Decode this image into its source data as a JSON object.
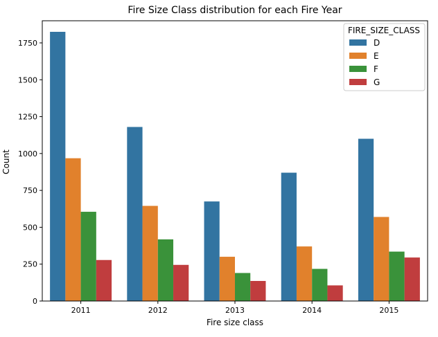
{
  "chart_data": {
    "type": "bar",
    "title": "Fire Size Class distribution for each Fire Year",
    "xlabel": "Fire size class",
    "ylabel": "Count",
    "categories": [
      "2011",
      "2012",
      "2013",
      "2014",
      "2015"
    ],
    "ylim": [
      0,
      1900
    ],
    "yticks": [
      0,
      250,
      500,
      750,
      1000,
      1250,
      1500,
      1750
    ],
    "legend_title": "FIRE_SIZE_CLASS",
    "legend_position": "top-right",
    "grid": false,
    "series": [
      {
        "name": "D",
        "color": "#3274a1",
        "values": [
          1825,
          1180,
          675,
          870,
          1100
        ]
      },
      {
        "name": "E",
        "color": "#e1812c",
        "values": [
          968,
          645,
          300,
          370,
          570
        ]
      },
      {
        "name": "F",
        "color": "#3a923a",
        "values": [
          605,
          418,
          190,
          218,
          335
        ]
      },
      {
        "name": "G",
        "color": "#c03d3e",
        "values": [
          278,
          245,
          136,
          106,
          295
        ]
      }
    ]
  }
}
